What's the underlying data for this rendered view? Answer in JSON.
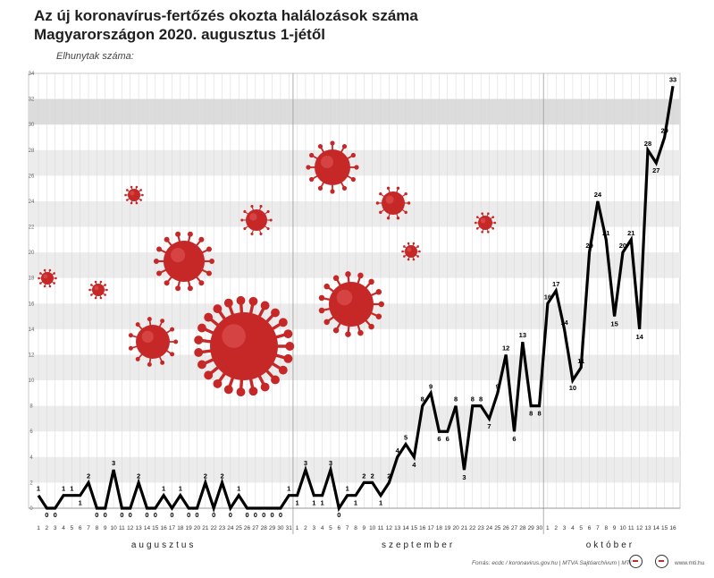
{
  "title_line1": "Az új koronavírus-fertőzés okozta halálozások száma",
  "title_line2": "Magyarországon 2020. augusztus 1-jétől",
  "ylabel": "Elhunytak száma:",
  "source": "Forrás: ecdc / koronavirus.gov.hu | MTVA Sajtóarchívum | MTI",
  "site": "www.mti.hu",
  "colors": {
    "line": "#000000",
    "virus": "#c62828",
    "band": "#ececec",
    "highlight": "#dcdcdc"
  },
  "chart_data": {
    "type": "line",
    "title": "Az új koronavírus-fertőzés okozta halálozások száma Magyarországon 2020. augusztus 1-jétől",
    "ylabel": "Elhunytak száma:",
    "ylim": [
      0,
      34
    ],
    "yticks": [
      0,
      2,
      4,
      6,
      8,
      10,
      12,
      14,
      16,
      18,
      20,
      22,
      24,
      26,
      28,
      30,
      32,
      34
    ],
    "months": [
      {
        "name": "augusztus",
        "days": 31
      },
      {
        "name": "szeptember",
        "days": 30
      },
      {
        "name": "október",
        "days": 16
      }
    ],
    "series": [
      {
        "values": [
          1,
          0,
          0,
          1,
          1,
          1,
          2,
          0,
          0,
          3,
          0,
          0,
          2,
          0,
          0,
          1,
          0,
          1,
          0,
          0,
          2,
          0,
          2,
          0,
          1,
          0,
          0,
          0,
          0,
          0,
          1,
          1,
          3,
          1,
          1,
          3,
          0,
          1,
          1,
          2,
          2,
          1,
          2,
          4,
          5,
          4,
          8,
          9,
          6,
          6,
          8,
          3,
          8,
          8,
          7,
          9,
          12,
          6,
          13,
          8,
          8,
          16,
          17,
          14,
          10,
          11,
          20,
          24,
          21,
          15,
          20,
          21,
          14,
          28,
          27,
          29,
          33
        ]
      }
    ],
    "grid": true
  }
}
